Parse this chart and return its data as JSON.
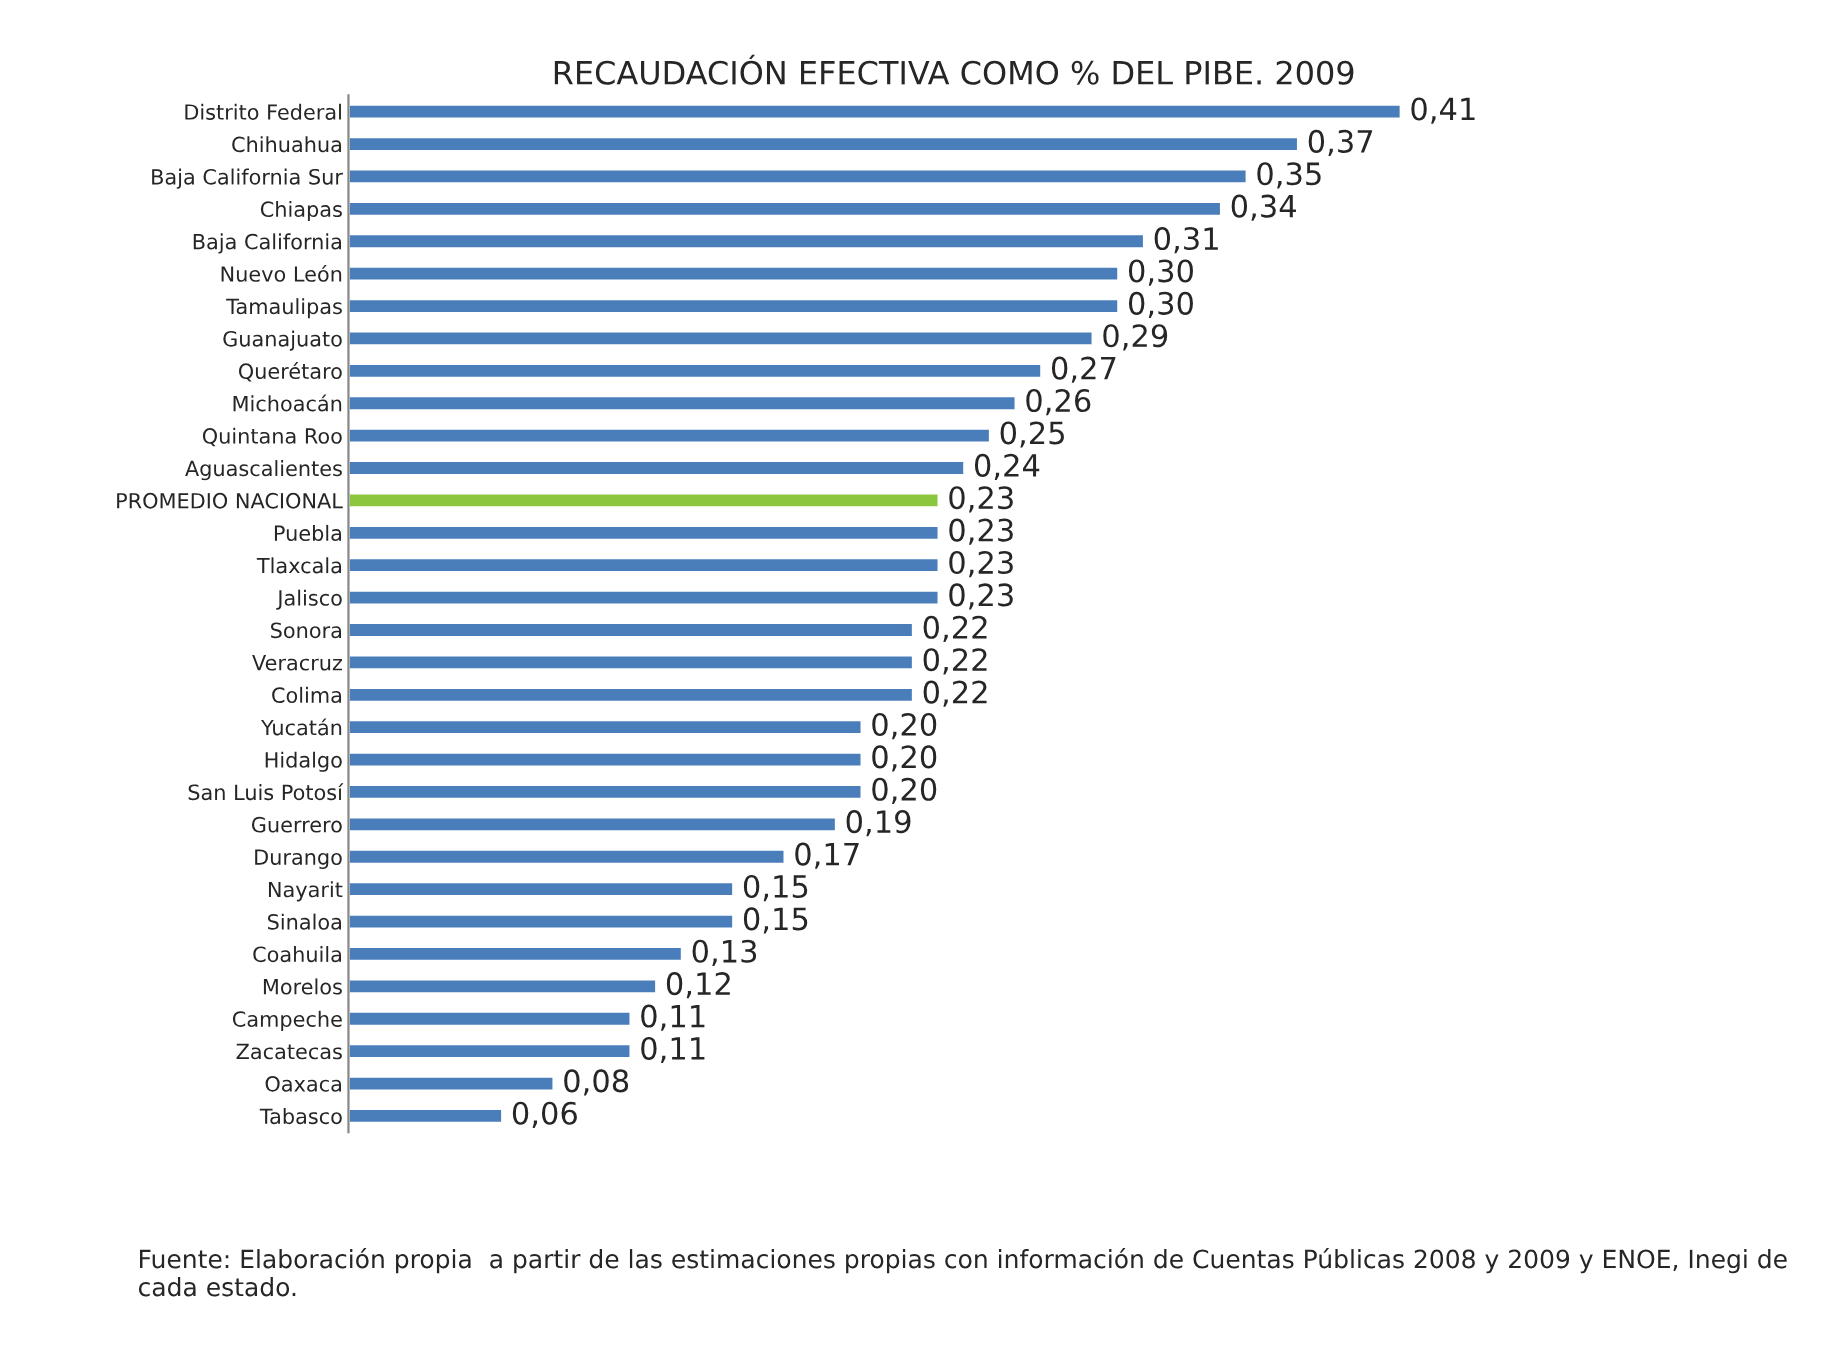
{
  "chart_data": {
    "type": "bar",
    "orientation": "horizontal",
    "title": "RECAUDACIÓN EFECTIVA COMO % DEL PIBE. 2009",
    "categories": [
      "Distrito Federal",
      "Chihuahua",
      "Baja California Sur",
      "Chiapas",
      "Baja California",
      "Nuevo León",
      "Tamaulipas",
      "Guanajuato",
      "Querétaro",
      "Michoacán",
      "Quintana Roo",
      "Aguascalientes",
      "PROMEDIO NACIONAL",
      "Puebla",
      "Tlaxcala",
      "Jalisco",
      "Sonora",
      "Veracruz",
      "Colima",
      "Yucatán",
      "Hidalgo",
      "San Luis Potosí",
      "Guerrero",
      "Durango",
      "Nayarit",
      "Sinaloa",
      "Coahuila",
      "Morelos",
      "Campeche",
      "Zacatecas",
      "Oaxaca",
      "Tabasco"
    ],
    "values": [
      0.41,
      0.37,
      0.35,
      0.34,
      0.31,
      0.3,
      0.3,
      0.29,
      0.27,
      0.26,
      0.25,
      0.24,
      0.23,
      0.23,
      0.23,
      0.23,
      0.22,
      0.22,
      0.22,
      0.2,
      0.2,
      0.2,
      0.19,
      0.17,
      0.15,
      0.15,
      0.13,
      0.12,
      0.11,
      0.11,
      0.08,
      0.06
    ],
    "value_labels": [
      "0,41",
      "0,37",
      "0,35",
      "0,34",
      "0,31",
      "0,30",
      "0,30",
      "0,29",
      "0,27",
      "0,26",
      "0,25",
      "0,24",
      "0,23",
      "0,23",
      "0,23",
      "0,23",
      "0,22",
      "0,22",
      "0,22",
      "0,20",
      "0,20",
      "0,20",
      "0,19",
      "0,17",
      "0,15",
      "0,15",
      "0,13",
      "0,12",
      "0,11",
      "0,11",
      "0,08",
      "0,06"
    ],
    "colors": [
      "#4a7ebb",
      "#4a7ebb",
      "#4a7ebb",
      "#4a7ebb",
      "#4a7ebb",
      "#4a7ebb",
      "#4a7ebb",
      "#4a7ebb",
      "#4a7ebb",
      "#4a7ebb",
      "#4a7ebb",
      "#4a7ebb",
      "#8cc63f",
      "#4a7ebb",
      "#4a7ebb",
      "#4a7ebb",
      "#4a7ebb",
      "#4a7ebb",
      "#4a7ebb",
      "#4a7ebb",
      "#4a7ebb",
      "#4a7ebb",
      "#4a7ebb",
      "#4a7ebb",
      "#4a7ebb",
      "#4a7ebb",
      "#4a7ebb",
      "#4a7ebb",
      "#4a7ebb",
      "#4a7ebb",
      "#4a7ebb",
      "#4a7ebb"
    ],
    "tick_labels": "y",
    "annotations": [
      "Fuente: Elaboración propia  a partir de las estimaciones propias con información de Cuentas Públicas 2008 y 2009 y ENOE, Inegi de cada estado."
    ]
  }
}
